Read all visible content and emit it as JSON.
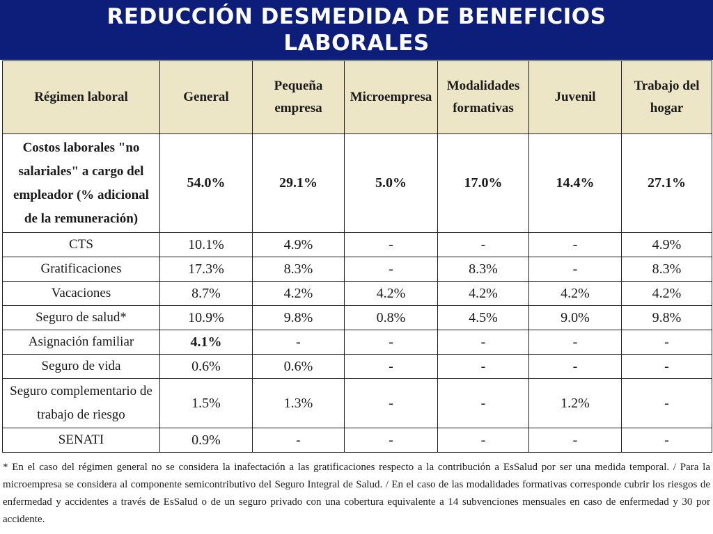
{
  "title": {
    "line1": "REDUCCIÓN DESMEDIDA DE BENEFICIOS",
    "line2": "LABORALES"
  },
  "table": {
    "headers": [
      "Régimen laboral",
      "General",
      "Pequeña empresa",
      "Microempresa",
      "Modalidades formativas",
      "Juvenil",
      "Trabajo del hogar"
    ],
    "costs_row": {
      "label": "Costos laborales \"no salariales\" a cargo del empleador (% adicional de la remuneración)",
      "values": [
        "54.0%",
        "29.1%",
        "5.0%",
        "17.0%",
        "14.4%",
        "27.1%"
      ]
    },
    "rows": [
      {
        "label": "CTS",
        "values": [
          "10.1%",
          "4.9%",
          "-",
          "-",
          "-",
          "4.9%"
        ]
      },
      {
        "label": "Gratificaciones",
        "values": [
          "17.3%",
          "8.3%",
          "-",
          "8.3%",
          "-",
          "8.3%"
        ]
      },
      {
        "label": "Vacaciones",
        "values": [
          "8.7%",
          "4.2%",
          "4.2%",
          "4.2%",
          "4.2%",
          "4.2%"
        ]
      },
      {
        "label": "Seguro de salud*",
        "values": [
          "10.9%",
          "9.8%",
          "0.8%",
          "4.5%",
          "9.0%",
          "9.8%"
        ]
      },
      {
        "label": "Asignación familiar",
        "values": [
          "4.1%",
          "-",
          "-",
          "-",
          "-",
          "-"
        ]
      },
      {
        "label": "Seguro de vida",
        "values": [
          "0.6%",
          "0.6%",
          "-",
          "-",
          "-",
          "-"
        ]
      },
      {
        "label": "Seguro complementario de trabajo de riesgo",
        "values": [
          "1.5%",
          "1.3%",
          "-",
          "-",
          "1.2%",
          "-"
        ]
      },
      {
        "label": "SENATI",
        "values": [
          "0.9%",
          "-",
          "-",
          "-",
          "-",
          "-"
        ]
      }
    ]
  },
  "footnote": "* En el caso del régimen general no se considera la inafectación a las gratificaciones respecto a la contribución a EsSalud por ser una medida temporal. / Para la microempresa se considera al componente semicontributivo del Seguro Integral de Salud. / En el caso de las modalidades formativas corresponde cubrir los riesgos de enfermedad y accidentes a través de EsSalud o de un seguro privado con una cobertura equivalente a 14 subvenciones mensuales en caso de enfermedad y 30 por accidente."
}
